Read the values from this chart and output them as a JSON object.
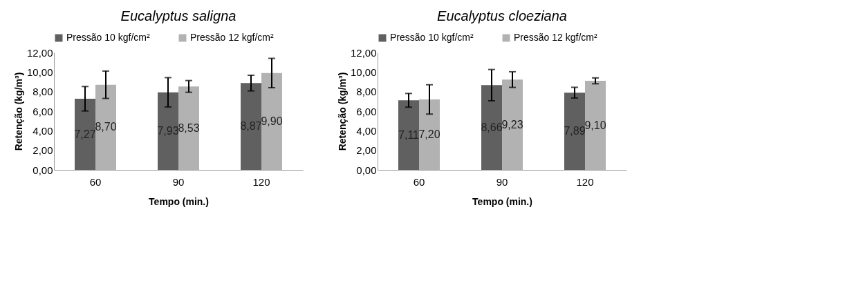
{
  "chart_data": [
    {
      "type": "bar",
      "title": "Eucalyptus saligna",
      "xlabel": "Tempo (min.)",
      "ylabel": "Retenção (kg/m³)",
      "categories": [
        "60",
        "90",
        "120"
      ],
      "ylim": [
        0,
        12
      ],
      "yticks": [
        {
          "value": 0,
          "label": "0,00"
        },
        {
          "value": 2,
          "label": "2,00"
        },
        {
          "value": 4,
          "label": "4,00"
        },
        {
          "value": 6,
          "label": "6,00"
        },
        {
          "value": 8,
          "label": "8,00"
        },
        {
          "value": 10,
          "label": "10,00"
        },
        {
          "value": 12,
          "label": "12,00"
        }
      ],
      "legend": "top",
      "grid": false,
      "series": [
        {
          "name": "Pressão 10 kgf/cm²",
          "color": "#606060",
          "values": [
            7.27,
            7.93,
            8.87
          ],
          "value_labels": [
            "7,27",
            "7,93",
            "8,87"
          ],
          "errors": [
            1.25,
            1.5,
            0.8
          ]
        },
        {
          "name": "Pressão 12 kgf/cm²",
          "color": "#b2b2b2",
          "values": [
            8.7,
            8.53,
            9.9
          ],
          "value_labels": [
            "8,70",
            "8,53",
            "9,90"
          ],
          "errors": [
            1.4,
            0.6,
            1.5
          ]
        }
      ]
    },
    {
      "type": "bar",
      "title": "Eucalyptus cloeziana",
      "xlabel": "Tempo (min.)",
      "ylabel": "Retenção (kg/m³)",
      "categories": [
        "60",
        "90",
        "120"
      ],
      "ylim": [
        0,
        12
      ],
      "yticks": [
        {
          "value": 0,
          "label": "0,00"
        },
        {
          "value": 2,
          "label": "2,00"
        },
        {
          "value": 4,
          "label": "4,00"
        },
        {
          "value": 6,
          "label": "6,00"
        },
        {
          "value": 8,
          "label": "8,00"
        },
        {
          "value": 10,
          "label": "10,00"
        },
        {
          "value": 12,
          "label": "12,00"
        }
      ],
      "legend": "top",
      "grid": false,
      "series": [
        {
          "name": "Pressão 10 kgf/cm²",
          "color": "#606060",
          "values": [
            7.11,
            8.66,
            7.89
          ],
          "value_labels": [
            "7,11",
            "8,66",
            "7,89"
          ],
          "errors": [
            0.7,
            1.6,
            0.55
          ]
        },
        {
          "name": "Pressão 12 kgf/cm²",
          "color": "#b2b2b2",
          "values": [
            7.2,
            9.23,
            9.1
          ],
          "value_labels": [
            "7,20",
            "9,23",
            "9,10"
          ],
          "errors": [
            1.5,
            0.8,
            0.3
          ]
        }
      ]
    }
  ]
}
